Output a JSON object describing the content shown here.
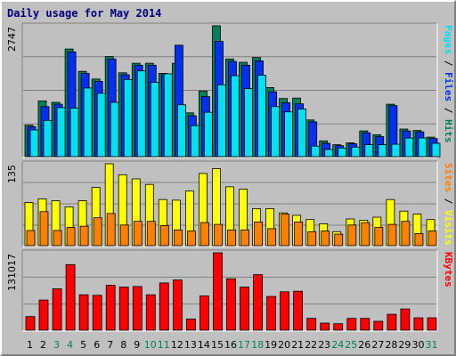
{
  "title": "Daily usage for May 2014",
  "colors": {
    "hits": "#00805c",
    "files": "#0030f0",
    "pages": "#00e0f0",
    "visits": "#ffff00",
    "sites": "#ff8000",
    "kbytes": "#ff0000",
    "weekend": "#00805c",
    "weekday": "#000000",
    "grid": "#808080",
    "panel": "#c0c0c0"
  },
  "chart_data": [
    {
      "type": "bar",
      "panel": "hits-files-pages",
      "scale_label": "2747",
      "legend": [
        "Pages",
        "Files",
        "Hits"
      ],
      "legend_separator": " / ",
      "categories": [
        "1",
        "2",
        "3",
        "4",
        "5",
        "6",
        "7",
        "8",
        "9",
        "10",
        "11",
        "12",
        "13",
        "14",
        "15",
        "16",
        "17",
        "18",
        "19",
        "20",
        "21",
        "22",
        "23",
        "24",
        "25",
        "26",
        "27",
        "28",
        "29",
        "30",
        "31"
      ],
      "ylim": [
        0,
        2747
      ],
      "series": [
        {
          "name": "Hits",
          "values": [
            660,
            1170,
            1140,
            2260,
            1790,
            1630,
            2100,
            1760,
            1960,
            1960,
            1750,
            1960,
            920,
            1380,
            2747,
            2050,
            1980,
            2080,
            1450,
            1220,
            1230,
            770,
            330,
            250,
            290,
            540,
            460,
            1100,
            580,
            550,
            410
          ]
        },
        {
          "name": "Files",
          "values": [
            630,
            1050,
            1100,
            2200,
            1750,
            1580,
            2050,
            1720,
            1920,
            1920,
            1720,
            2340,
            860,
            1260,
            2420,
            2000,
            1920,
            2010,
            1360,
            1130,
            1110,
            730,
            280,
            230,
            270,
            500,
            420,
            1070,
            540,
            520,
            380
          ]
        },
        {
          "name": "Pages",
          "values": [
            560,
            760,
            1030,
            1020,
            1440,
            1330,
            1140,
            1620,
            1800,
            1560,
            1740,
            1090,
            650,
            930,
            1510,
            1700,
            1430,
            1710,
            1050,
            940,
            1000,
            220,
            150,
            180,
            200,
            250,
            250,
            260,
            390,
            390,
            280
          ]
        }
      ]
    },
    {
      "type": "bar",
      "panel": "visits-sites",
      "scale_label": "135",
      "legend": [
        "Sites",
        "Visits"
      ],
      "legend_separator": " / ",
      "categories": [
        "1",
        "2",
        "3",
        "4",
        "5",
        "6",
        "7",
        "8",
        "9",
        "10",
        "11",
        "12",
        "13",
        "14",
        "15",
        "16",
        "17",
        "18",
        "19",
        "20",
        "21",
        "22",
        "23",
        "24",
        "25",
        "26",
        "27",
        "28",
        "29",
        "30",
        "31"
      ],
      "ylim": [
        0,
        135
      ],
      "series": [
        {
          "name": "Visits",
          "values": [
            71,
            77,
            74,
            64,
            74,
            96,
            135,
            117,
            110,
            101,
            76,
            75,
            90,
            119,
            127,
            97,
            93,
            61,
            61,
            54,
            50,
            43,
            36,
            23,
            44,
            42,
            47,
            76,
            57,
            52,
            43
          ]
        },
        {
          "name": "Sites",
          "values": [
            25,
            56,
            25,
            30,
            32,
            46,
            53,
            34,
            40,
            40,
            33,
            26,
            24,
            38,
            35,
            26,
            26,
            39,
            28,
            52,
            39,
            23,
            24,
            19,
            34,
            38,
            30,
            35,
            40,
            20,
            24
          ]
        }
      ]
    },
    {
      "type": "bar",
      "panel": "kbytes",
      "scale_label": "131017",
      "legend": [
        "KBytes"
      ],
      "legend_separator": "",
      "categories": [
        "1",
        "2",
        "3",
        "4",
        "5",
        "6",
        "7",
        "8",
        "9",
        "10",
        "11",
        "12",
        "13",
        "14",
        "15",
        "16",
        "17",
        "18",
        "19",
        "20",
        "21",
        "22",
        "23",
        "24",
        "25",
        "26",
        "27",
        "28",
        "29",
        "30",
        "31"
      ],
      "ylim": [
        0,
        131017
      ],
      "series": [
        {
          "name": "KBytes",
          "values": [
            23000,
            51000,
            70000,
            111000,
            60000,
            59000,
            76000,
            73000,
            74000,
            60000,
            80000,
            85000,
            19000,
            58000,
            131017,
            87000,
            73000,
            94000,
            57000,
            65000,
            66000,
            20000,
            12000,
            11000,
            20000,
            20000,
            15000,
            27000,
            36000,
            21000,
            21000
          ]
        }
      ]
    }
  ],
  "weekend_days": [
    "3",
    "4",
    "10",
    "11",
    "17",
    "18",
    "24",
    "25",
    "31"
  ]
}
